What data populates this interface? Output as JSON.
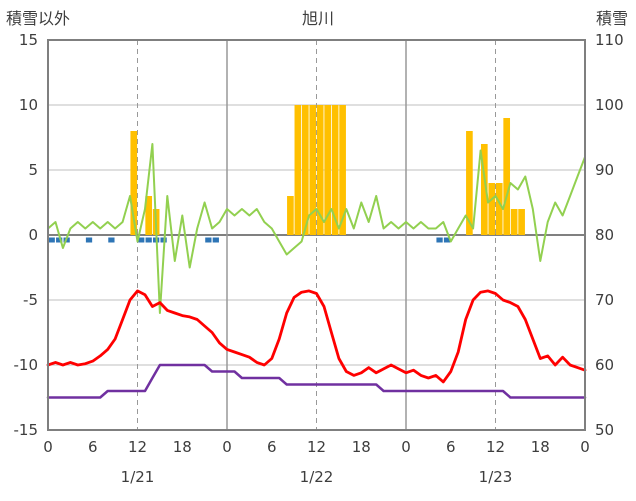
{
  "header": {
    "left_axis_title": "積雪以外",
    "title": "旭川",
    "right_axis_title": "積雪"
  },
  "colors": {
    "text": "#3d3d3d",
    "grid": "#bfbfbf",
    "grid_day": "#999999",
    "zero_line": "#808080",
    "border": "#7f7f7f",
    "snow_bar": "#ffc000",
    "blue_marker": "#2e75b6",
    "green_line": "#92d050",
    "red_line": "#ff0000",
    "purple_line": "#7030a0"
  },
  "chart_data": {
    "type": "mixed",
    "title": "旭川",
    "x_hours_total": 72,
    "x_tick_interval": 6,
    "x_tick_labels": [
      "0",
      "6",
      "12",
      "18",
      "0",
      "6",
      "12",
      "18",
      "0",
      "6",
      "12",
      "18",
      "0"
    ],
    "date_labels": [
      {
        "label": "1/21",
        "hour": 12
      },
      {
        "label": "1/22",
        "hour": 36
      },
      {
        "label": "1/23",
        "hour": 60
      }
    ],
    "left_axis": {
      "title": "積雪以外",
      "min": -15,
      "max": 15,
      "ticks": [
        15,
        10,
        5,
        0,
        -5,
        -10,
        -15
      ]
    },
    "right_axis": {
      "title": "積雪",
      "min": 50,
      "max": 110,
      "ticks": [
        110,
        100,
        90,
        80,
        70,
        60,
        50
      ]
    },
    "gridlines": {
      "vertical_dashed_hours": [
        12,
        36,
        60
      ],
      "vertical_solid_hours": [
        24,
        48
      ],
      "horizontal": true
    },
    "series": [
      {
        "name": "snowfall-bars",
        "type": "bar",
        "axis": "left",
        "color_key": "snow_bar",
        "values": [
          0,
          0,
          0,
          0,
          0,
          0,
          0,
          0,
          0,
          0,
          0,
          8,
          0,
          3,
          2,
          0,
          0,
          0,
          0,
          0,
          0,
          0,
          0,
          0,
          0,
          0,
          0,
          0,
          0,
          0,
          0,
          0,
          3,
          10,
          10,
          10,
          10,
          10,
          10,
          10,
          0,
          0,
          0,
          0,
          0,
          0,
          0,
          0,
          0,
          0,
          0,
          0,
          0,
          0,
          0,
          0,
          8,
          0,
          7,
          4,
          4,
          9,
          2,
          2,
          0,
          0,
          0,
          0,
          0,
          0,
          0,
          0
        ]
      },
      {
        "name": "blue-markers",
        "type": "marker",
        "axis": "left",
        "color_key": "blue_marker",
        "hours": [
          0,
          1,
          2,
          5,
          8,
          12,
          13,
          14,
          15,
          21,
          22,
          52,
          53
        ],
        "value": -0.55
      },
      {
        "name": "green-line",
        "type": "line",
        "axis": "left",
        "color_key": "green_line",
        "width": 2,
        "values": [
          0.5,
          1,
          -1,
          0.5,
          1,
          0.5,
          1,
          0.5,
          1,
          0.5,
          1,
          3,
          -0.5,
          2,
          7,
          -6,
          3,
          -2,
          1.5,
          -2.5,
          0.5,
          2.5,
          0.5,
          1,
          2,
          1.5,
          2,
          1.5,
          2,
          1,
          0.5,
          -0.5,
          -1.5,
          -1,
          -0.5,
          1.5,
          2,
          1,
          2,
          0.5,
          2,
          0.5,
          2.5,
          1,
          3,
          0.5,
          1,
          0.5,
          1,
          0.5,
          1,
          0.5,
          0.5,
          1,
          -0.5,
          0.5,
          1.5,
          0.5,
          6.5,
          2.5,
          3,
          2,
          4,
          3.5,
          4.5,
          2,
          -2,
          1,
          2.5,
          1.5,
          3,
          4.5,
          6
        ]
      },
      {
        "name": "purple-line",
        "type": "line",
        "axis": "right",
        "color_key": "purple_line",
        "width": 2.5,
        "values": [
          55,
          55,
          55,
          55,
          55,
          55,
          55,
          55,
          56,
          56,
          56,
          56,
          56,
          56,
          58,
          60,
          60,
          60,
          60,
          60,
          60,
          60,
          59,
          59,
          59,
          59,
          58,
          58,
          58,
          58,
          58,
          58,
          57,
          57,
          57,
          57,
          57,
          57,
          57,
          57,
          57,
          57,
          57,
          57,
          57,
          56,
          56,
          56,
          56,
          56,
          56,
          56,
          56,
          56,
          56,
          56,
          56,
          56,
          56,
          56,
          56,
          56,
          55,
          55,
          55,
          55,
          55,
          55,
          55,
          55,
          55,
          55,
          55
        ]
      },
      {
        "name": "red-line",
        "type": "line",
        "axis": "left",
        "color_key": "red_line",
        "width": 2.8,
        "values": [
          -10,
          -9.8,
          -10,
          -9.8,
          -10,
          -9.9,
          -9.7,
          -9.3,
          -8.8,
          -8,
          -6.5,
          -5,
          -4.3,
          -4.6,
          -5.5,
          -5.2,
          -5.8,
          -6,
          -6.2,
          -6.3,
          -6.5,
          -7,
          -7.5,
          -8.3,
          -8.8,
          -9,
          -9.2,
          -9.4,
          -9.8,
          -10,
          -9.5,
          -8,
          -6,
          -4.8,
          -4.4,
          -4.3,
          -4.5,
          -5.5,
          -7.5,
          -9.5,
          -10.5,
          -10.8,
          -10.6,
          -10.2,
          -10.6,
          -10.3,
          -10,
          -10.3,
          -10.6,
          -10.4,
          -10.8,
          -11,
          -10.8,
          -11.3,
          -10.5,
          -9,
          -6.5,
          -5,
          -4.4,
          -4.3,
          -4.5,
          -5,
          -5.2,
          -5.5,
          -6.5,
          -8,
          -9.5,
          -9.3,
          -10,
          -9.4,
          -10,
          -10.2,
          -10.4
        ]
      }
    ]
  }
}
